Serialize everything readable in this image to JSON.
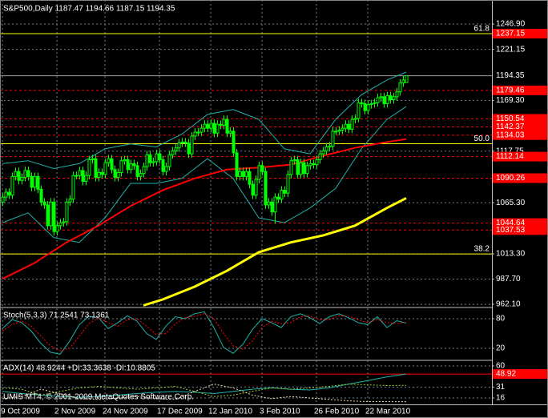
{
  "chart_data": [
    {
      "type": "candlestick",
      "title": "S&P500,Daily  1187.47 1194.66 1187.15 1194.35",
      "categories": [
        "9 Oct 2009",
        null,
        null,
        null,
        null,
        null,
        null,
        null,
        null,
        null,
        null,
        null,
        null,
        null,
        null,
        null,
        null,
        "2 Nov 2009",
        null,
        null,
        null,
        null,
        null,
        null,
        null,
        null,
        null,
        null,
        null,
        null,
        null,
        null,
        "24 Nov 2009",
        null,
        null,
        null,
        null,
        null,
        null,
        null,
        null,
        null,
        null,
        null,
        null,
        null,
        null,
        null,
        null,
        "17 Dec 2009",
        null,
        null,
        null,
        null,
        null,
        null,
        null,
        null,
        null,
        null,
        null,
        null,
        null,
        null,
        null,
        "12 Jan 2010",
        null,
        null,
        null,
        null,
        null,
        null,
        null,
        null,
        null,
        null,
        null,
        null,
        null,
        null,
        null,
        "3 Feb 2010",
        null,
        null,
        null,
        null,
        null,
        null,
        null,
        null,
        null,
        null,
        null,
        null,
        null,
        null,
        null,
        null,
        "26 Feb 2010",
        null,
        null,
        null,
        null,
        null,
        null,
        null,
        null,
        null,
        null,
        null,
        null,
        null,
        null,
        null,
        "22 Mar 2010",
        null,
        null,
        null,
        null,
        null,
        null,
        null,
        null,
        null,
        null,
        null,
        null
      ],
      "open": [
        1066,
        1071,
        1076,
        1073,
        1092,
        1097,
        1088,
        1091,
        1098,
        1092,
        1081,
        1092,
        1079,
        1066,
        1063,
        1042,
        1066,
        1036,
        1042,
        1045,
        1046,
        1066,
        1069,
        1093,
        1093,
        1098,
        1087,
        1093,
        1109,
        1110,
        1091,
        1096,
        1094,
        1106,
        1110,
        1099,
        1091,
        1096,
        1108,
        1109,
        1099,
        1105,
        1103,
        1092,
        1095,
        1102,
        1114,
        1106,
        1107,
        1115,
        1109,
        1097,
        1102,
        1114,
        1118,
        1121,
        1126,
        1127,
        1126,
        1115,
        1133,
        1137,
        1137,
        1141,
        1145,
        1141,
        1146,
        1136,
        1145,
        1144,
        1150,
        1136,
        1138,
        1116,
        1092,
        1097,
        1092,
        1097,
        1084,
        1073,
        1089,
        1103,
        1097,
        1063,
        1066,
        1056,
        1071,
        1069,
        1078,
        1075,
        1094,
        1108,
        1109,
        1094,
        1106,
        1095,
        1103,
        1105,
        1104,
        1109,
        1115,
        1118,
        1122,
        1123,
        1138,
        1138,
        1139,
        1141,
        1145,
        1140,
        1150,
        1151,
        1167,
        1166,
        1159,
        1165,
        1166,
        1167,
        1172,
        1173,
        1166,
        1174,
        1170,
        1173,
        1178,
        1187,
        1187.47
      ],
      "high": [
        1075,
        1080,
        1080,
        1096,
        1101,
        1101,
        1095,
        1102,
        1102,
        1096,
        1096,
        1096,
        1083,
        1070,
        1067,
        1070,
        1070,
        1046,
        1049,
        1050,
        1070,
        1073,
        1097,
        1097,
        1102,
        1102,
        1097,
        1113,
        1114,
        1114,
        1100,
        1100,
        1110,
        1114,
        1114,
        1103,
        1100,
        1112,
        1113,
        1113,
        1109,
        1109,
        1107,
        1099,
        1106,
        1118,
        1118,
        1111,
        1119,
        1119,
        1113,
        1106,
        1118,
        1122,
        1125,
        1130,
        1131,
        1131,
        1130,
        1137,
        1141,
        1141,
        1145,
        1149,
        1149,
        1150,
        1150,
        1149,
        1149,
        1154,
        1154,
        1142,
        1142,
        1120,
        1101,
        1101,
        1101,
        1101,
        1088,
        1093,
        1107,
        1107,
        1101,
        1070,
        1070,
        1075,
        1075,
        1082,
        1082,
        1098,
        1112,
        1113,
        1113,
        1110,
        1110,
        1107,
        1109,
        1109,
        1113,
        1119,
        1122,
        1126,
        1127,
        1142,
        1142,
        1143,
        1145,
        1149,
        1149,
        1154,
        1155,
        1171,
        1171,
        1170,
        1169,
        1170,
        1171,
        1176,
        1177,
        1177,
        1178,
        1178,
        1177,
        1182,
        1191,
        1194,
        1194.66
      ],
      "low": [
        1062,
        1067,
        1069,
        1069,
        1088,
        1084,
        1084,
        1087,
        1088,
        1077,
        1077,
        1075,
        1062,
        1059,
        1038,
        1038,
        1032,
        1032,
        1038,
        1041,
        1042,
        1062,
        1065,
        1089,
        1089,
        1083,
        1083,
        1089,
        1105,
        1087,
        1087,
        1090,
        1090,
        1102,
        1095,
        1087,
        1087,
        1092,
        1104,
        1095,
        1095,
        1099,
        1088,
        1088,
        1091,
        1098,
        1102,
        1102,
        1103,
        1105,
        1093,
        1093,
        1098,
        1110,
        1114,
        1117,
        1122,
        1122,
        1111,
        1111,
        1129,
        1133,
        1133,
        1137,
        1137,
        1137,
        1132,
        1132,
        1140,
        1140,
        1132,
        1132,
        1112,
        1088,
        1088,
        1088,
        1088,
        1080,
        1069,
        1069,
        1085,
        1093,
        1059,
        1059,
        1052,
        1044,
        1065,
        1065,
        1071,
        1071,
        1090,
        1104,
        1090,
        1090,
        1091,
        1091,
        1099,
        1100,
        1100,
        1105,
        1111,
        1114,
        1118,
        1119,
        1134,
        1134,
        1135,
        1137,
        1136,
        1136,
        1146,
        1147,
        1162,
        1155,
        1155,
        1161,
        1162,
        1163,
        1168,
        1162,
        1162,
        1166,
        1166,
        1169,
        1174,
        1183,
        1187.15
      ],
      "close": [
        1071,
        1076,
        1073,
        1092,
        1097,
        1088,
        1091,
        1098,
        1092,
        1081,
        1092,
        1079,
        1066,
        1063,
        1042,
        1066,
        1036,
        1042,
        1045,
        1046,
        1066,
        1069,
        1093,
        1093,
        1098,
        1087,
        1093,
        1109,
        1110,
        1091,
        1096,
        1094,
        1106,
        1110,
        1099,
        1091,
        1096,
        1108,
        1109,
        1099,
        1105,
        1103,
        1092,
        1095,
        1102,
        1114,
        1106,
        1107,
        1115,
        1109,
        1097,
        1102,
        1114,
        1118,
        1121,
        1126,
        1127,
        1126,
        1115,
        1133,
        1137,
        1137,
        1141,
        1145,
        1141,
        1146,
        1136,
        1145,
        1144,
        1150,
        1136,
        1138,
        1116,
        1092,
        1097,
        1092,
        1097,
        1084,
        1073,
        1089,
        1103,
        1097,
        1063,
        1066,
        1056,
        1071,
        1069,
        1078,
        1075,
        1094,
        1108,
        1109,
        1094,
        1106,
        1095,
        1103,
        1105,
        1104,
        1109,
        1115,
        1118,
        1122,
        1123,
        1138,
        1138,
        1139,
        1141,
        1145,
        1140,
        1150,
        1151,
        1167,
        1166,
        1159,
        1165,
        1166,
        1167,
        1172,
        1173,
        1166,
        1174,
        1170,
        1173,
        1178,
        1187,
        1190,
        1194.35
      ],
      "up_color": "#000000",
      "down_color": "#00ff00",
      "wick_color": "#00ff00",
      "series": [
        {
          "color": "#20b2aa",
          "width": 1,
          "x": [
            0,
            8,
            16,
            24,
            32,
            40,
            48,
            56,
            64,
            72,
            80,
            88,
            96,
            104,
            112,
            120,
            126
          ],
          "values": [
            1105,
            1108,
            1100,
            1105,
            1120,
            1125,
            1122,
            1135,
            1155,
            1160,
            1150,
            1120,
            1115,
            1150,
            1175,
            1190,
            1198
          ]
        },
        {
          "color": "#20b2aa",
          "width": 1,
          "x": [
            0,
            8,
            16,
            24,
            32,
            40,
            48,
            56,
            64,
            72,
            80,
            88,
            96,
            104,
            112,
            120,
            126
          ],
          "values": [
            1045,
            1055,
            1030,
            1025,
            1050,
            1085,
            1085,
            1090,
            1110,
            1090,
            1050,
            1045,
            1060,
            1080,
            1120,
            1150,
            1163
          ]
        },
        {
          "color": "#ff0000",
          "width": 2,
          "x": [
            0,
            10,
            20,
            30,
            40,
            50,
            60,
            70,
            80,
            90,
            100,
            110,
            120,
            126
          ],
          "values": [
            988,
            1004,
            1025,
            1042,
            1062,
            1078,
            1090,
            1099,
            1101,
            1104,
            1113,
            1121,
            1127,
            1130
          ]
        },
        {
          "color": "#ffff00",
          "width": 3,
          "x": [
            44,
            50,
            60,
            70,
            80,
            90,
            100,
            110,
            120,
            126
          ],
          "values": [
            961,
            967,
            980,
            996,
            1015,
            1025,
            1032,
            1042,
            1060,
            1070
          ]
        }
      ],
      "levels": [
        {
          "value": 1237.15,
          "label": "1237.15"
        },
        {
          "value": 1179.46,
          "label": "1179.46"
        },
        {
          "value": 1150.54,
          "label": "1150.54"
        },
        {
          "value": 1142.37,
          "label": "1142.37"
        },
        {
          "value": 1134.03,
          "label": "1134.03"
        },
        {
          "value": 1112.14,
          "label": "1112.14"
        },
        {
          "value": 1090.26,
          "label": "1090.26"
        },
        {
          "value": 1044.64,
          "label": "1044.64"
        },
        {
          "value": 1037.53,
          "label": "1037.53"
        }
      ],
      "level_color": "#ff0000",
      "fibo": [
        {
          "value": 1237.15,
          "label": "61.8"
        },
        {
          "value": 1125.2,
          "label": "50.0"
        },
        {
          "value": 1013.3,
          "label": "38.2"
        }
      ],
      "fibo_color": "#ffff00",
      "last_price": {
        "value": 1194.35,
        "label": "1194.35"
      },
      "ylim": [
        959.66,
        1269.68
      ],
      "yticks": [
        {
          "value": 1246.9,
          "label": "1246.90"
        },
        1221.15,
        {
          "value": 1169.3,
          "label": "1169.30"
        },
        1117.75,
        {
          "value": 1065.3,
          "label": "1065.30"
        },
        {
          "value": 1013.3,
          "label": "1013.30"
        },
        {
          "value": 987.7,
          "label": "987.70"
        },
        {
          "value": 962.1,
          "label": "962.10"
        }
      ],
      "grid": true
    },
    {
      "type": "line",
      "title": "Stoch(5,3,3) 71.2541 73.1361",
      "series": [
        {
          "color": "#20b2aa",
          "width": 1,
          "dash": false,
          "x": [
            0,
            3,
            6,
            9,
            12,
            15,
            18,
            21,
            24,
            27,
            30,
            33,
            36,
            39,
            42,
            45,
            48,
            51,
            54,
            57,
            60,
            63,
            66,
            69,
            72,
            75,
            78,
            81,
            84,
            87,
            90,
            93,
            96,
            99,
            102,
            105,
            108,
            111,
            114,
            117,
            120,
            123,
            126
          ],
          "values": [
            60,
            78,
            72,
            55,
            30,
            12,
            8,
            35,
            68,
            85,
            82,
            60,
            72,
            86,
            75,
            50,
            38,
            65,
            84,
            80,
            90,
            94,
            62,
            22,
            10,
            28,
            58,
            80,
            72,
            62,
            84,
            90,
            82,
            70,
            84,
            90,
            82,
            72,
            68,
            84,
            62,
            76,
            71.25
          ]
        },
        {
          "color": "#ff0000",
          "width": 1,
          "dash": true,
          "x": [
            0,
            3,
            6,
            9,
            12,
            15,
            18,
            21,
            24,
            27,
            30,
            33,
            36,
            39,
            42,
            45,
            48,
            51,
            54,
            57,
            60,
            63,
            66,
            69,
            72,
            75,
            78,
            81,
            84,
            87,
            90,
            93,
            96,
            99,
            102,
            105,
            108,
            111,
            114,
            117,
            120,
            123,
            126
          ],
          "values": [
            55,
            68,
            75,
            65,
            45,
            25,
            15,
            20,
            45,
            70,
            82,
            72,
            65,
            78,
            80,
            65,
            48,
            50,
            70,
            82,
            85,
            90,
            80,
            50,
            25,
            18,
            35,
            62,
            75,
            70,
            72,
            84,
            85,
            78,
            78,
            86,
            85,
            78,
            72,
            78,
            72,
            70,
            73.14
          ]
        }
      ],
      "ylim": [
        -2.7,
        101.1
      ],
      "yticks": [
        20,
        80
      ],
      "grid": true
    },
    {
      "type": "line",
      "title": "ADX(14) 48.9244 +DI:33.3638 -DI:10.8805",
      "series": [
        {
          "color": "#20b2aa",
          "width": 1,
          "dash": false,
          "x": [
            0,
            6,
            12,
            18,
            24,
            30,
            36,
            42,
            48,
            54,
            60,
            66,
            72,
            78,
            84,
            90,
            96,
            102,
            108,
            114,
            120,
            126
          ],
          "values": [
            25,
            22,
            20,
            18,
            17,
            18,
            20,
            22,
            24,
            25,
            24,
            22,
            25,
            28,
            30,
            28,
            27,
            30,
            35,
            40,
            45,
            48.92
          ]
        },
        {
          "color": "#9acd32",
          "width": 1,
          "dash": true,
          "x": [
            0,
            6,
            12,
            18,
            24,
            30,
            36,
            42,
            48,
            54,
            60,
            66,
            72,
            78,
            84,
            90,
            96,
            102,
            108,
            114,
            120,
            126
          ],
          "values": [
            30,
            28,
            20,
            25,
            30,
            32,
            30,
            28,
            30,
            32,
            25,
            18,
            20,
            25,
            30,
            28,
            30,
            32,
            35,
            34,
            33,
            33.36
          ]
        },
        {
          "color": "#f5deb3",
          "width": 1,
          "dash": true,
          "x": [
            0,
            6,
            12,
            18,
            24,
            30,
            36,
            42,
            48,
            54,
            60,
            66,
            72,
            78,
            84,
            90,
            96,
            102,
            108,
            114,
            120,
            126
          ],
          "values": [
            15,
            18,
            28,
            22,
            15,
            14,
            16,
            18,
            15,
            14,
            25,
            35,
            30,
            20,
            15,
            18,
            16,
            14,
            12,
            11,
            11,
            10.88
          ]
        }
      ],
      "levels": [
        {
          "value": 48.92,
          "label": "48.92"
        }
      ],
      "level_color": "#ff0000",
      "ylim": [
        7.2,
        66.6
      ],
      "yticks": [
        16,
        31,
        60
      ],
      "grid": true
    }
  ],
  "footer": "UMIS MT4, © 2001-2009 MetaQuotes Software Corp."
}
